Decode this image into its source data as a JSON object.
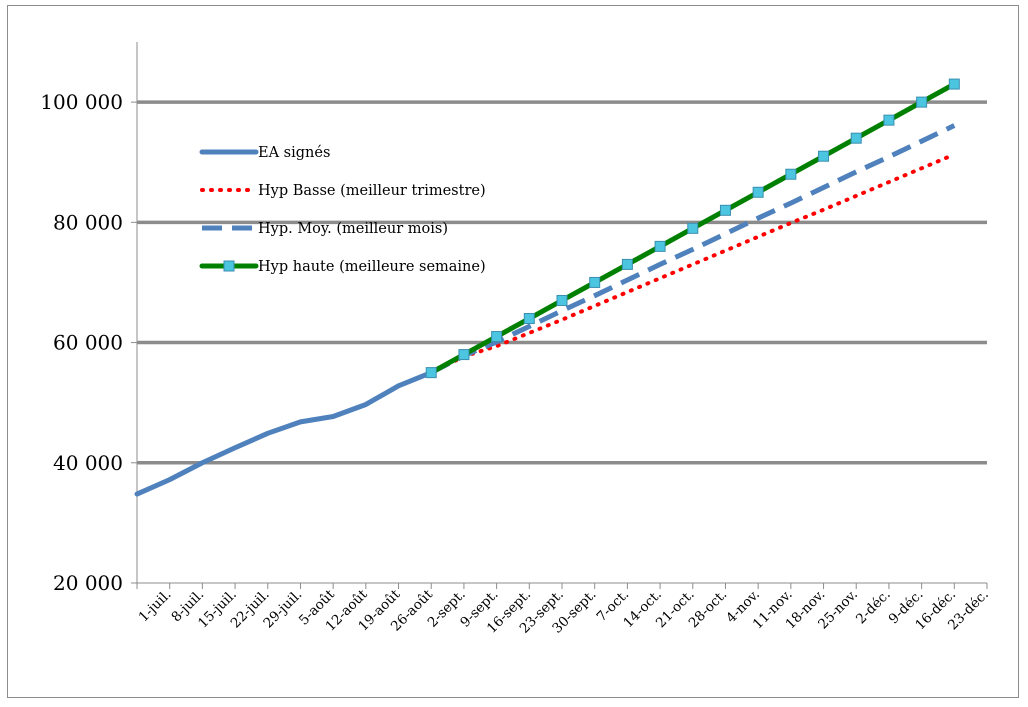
{
  "chart_data": {
    "type": "line",
    "title": "",
    "xlabel": "",
    "ylabel": "",
    "ylim": [
      20000,
      110000
    ],
    "yticks": [
      20000,
      40000,
      60000,
      80000,
      100000
    ],
    "ytick_labels": [
      "20 000",
      "40 000",
      "60 000",
      "80 000",
      "100 000"
    ],
    "grid": "horizontal",
    "legend_position": "top-left",
    "categories": [
      "1-juil.",
      "8-juil.",
      "15-juil.",
      "22-juil.",
      "29-juil.",
      "5-août",
      "12-août",
      "19-août",
      "26-août",
      "2-sept.",
      "9-sept.",
      "16-sept.",
      "23-sept.",
      "30-sept.",
      "7-oct.",
      "14-oct.",
      "21-oct.",
      "28-oct.",
      "4-nov.",
      "11-nov.",
      "18-nov.",
      "25-nov.",
      "2-déc.",
      "9-déc.",
      "16-déc.",
      "23-déc."
    ],
    "series": [
      {
        "name": "EA signés",
        "color": "#4f81bd",
        "style": "solid",
        "values": [
          34800,
          37200,
          40000,
          42500,
          44900,
          46800,
          47700,
          49700,
          52800,
          55000,
          null,
          null,
          null,
          null,
          null,
          null,
          null,
          null,
          null,
          null,
          null,
          null,
          null,
          null,
          null,
          null
        ]
      },
      {
        "name": "Hyp Basse (meilleur trimestre)",
        "color": "#ff0000",
        "style": "dotted",
        "values": [
          null,
          null,
          null,
          null,
          null,
          null,
          null,
          null,
          null,
          55000,
          57700,
          59400,
          61600,
          63800,
          66100,
          68400,
          70700,
          73000,
          75300,
          77600,
          79900,
          82100,
          84400,
          86700,
          89000,
          91300
        ]
      },
      {
        "name": "Hyp. Moy. (meilleur mois)",
        "color": "#4f81bd",
        "style": "dashed",
        "values": [
          null,
          null,
          null,
          null,
          null,
          null,
          null,
          null,
          null,
          55000,
          57800,
          60100,
          62700,
          65300,
          67800,
          70400,
          73000,
          75500,
          78100,
          80700,
          83200,
          85800,
          88400,
          90900,
          93500,
          96100
        ]
      },
      {
        "name": "Hyp haute (meilleure semaine)",
        "color": "#008000",
        "marker_color": "#4bc5e0",
        "style": "solid-marker",
        "values": [
          null,
          null,
          null,
          null,
          null,
          null,
          null,
          null,
          null,
          55000,
          58000,
          61000,
          64000,
          67000,
          70000,
          73000,
          76000,
          79000,
          82000,
          85000,
          88000,
          91000,
          94000,
          97000,
          100000,
          103000
        ]
      }
    ]
  }
}
